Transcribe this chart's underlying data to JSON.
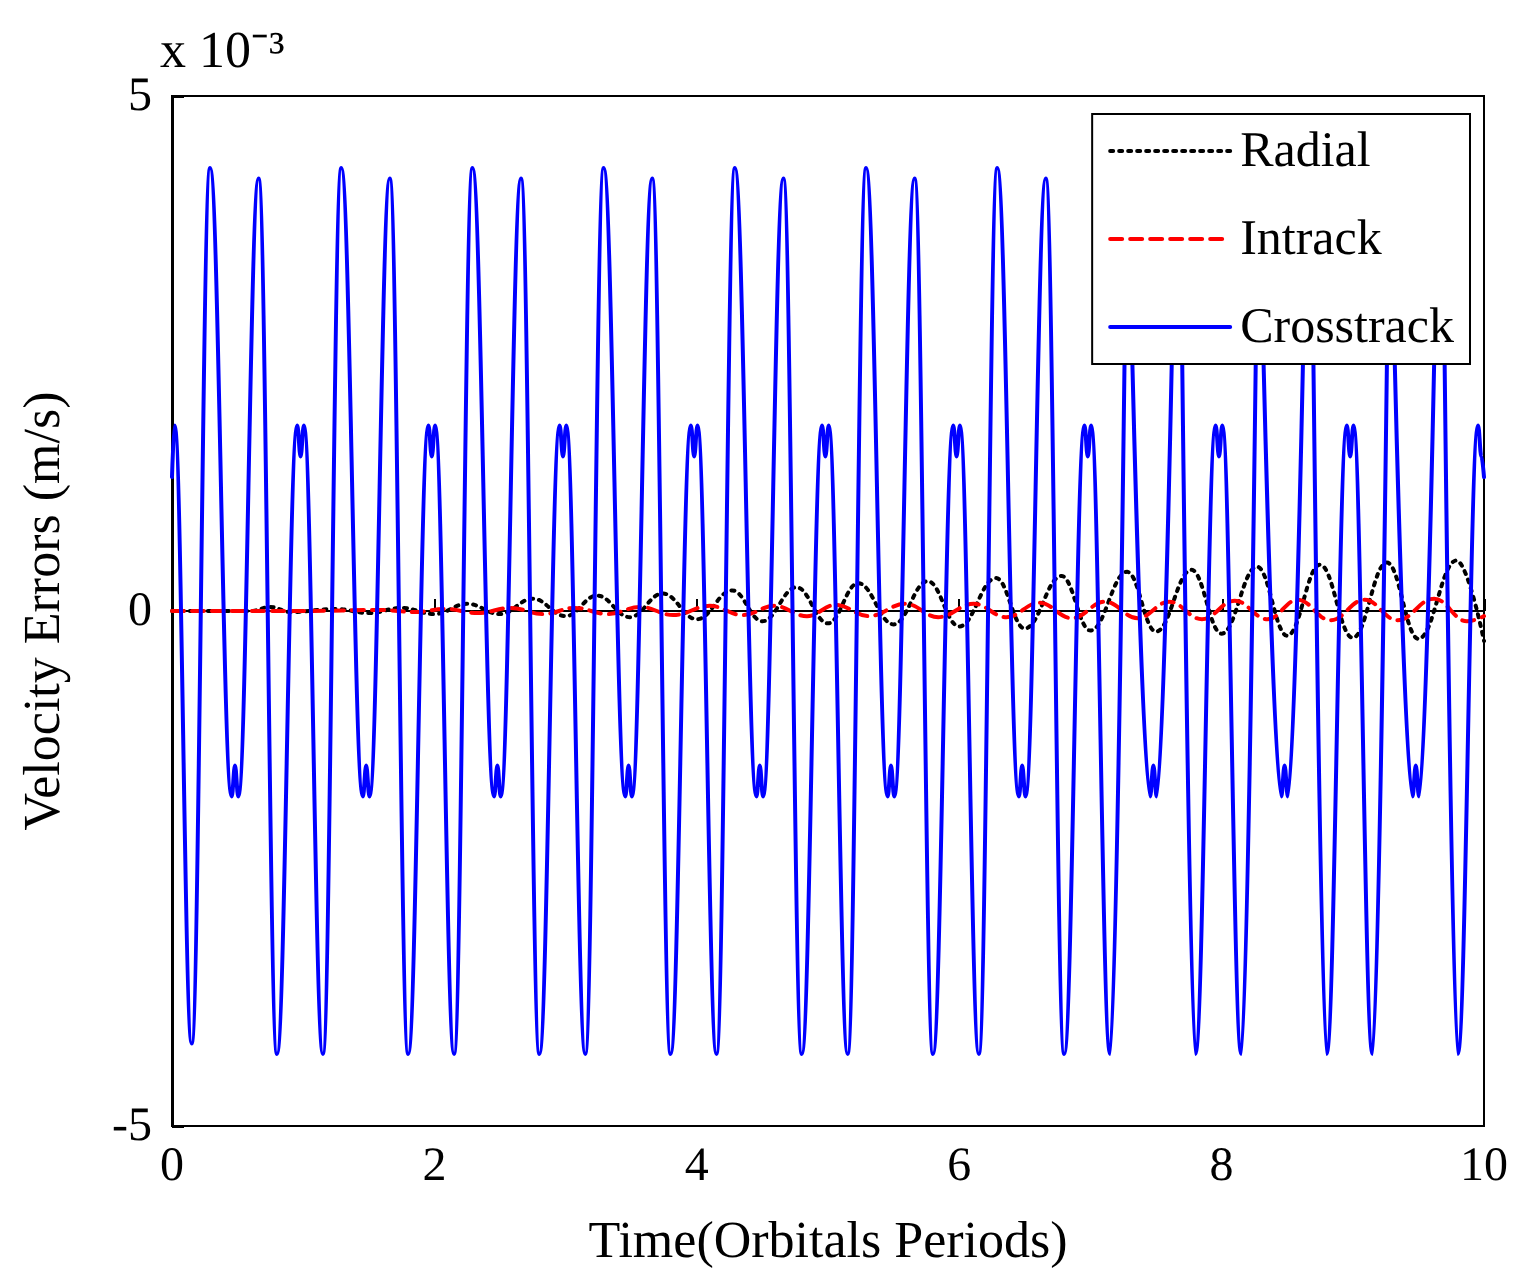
{
  "chart_data": {
    "type": "line",
    "xlabel": "Time(Orbitals Periods)",
    "ylabel": "Velocity Errors (m/s)",
    "annotations": [
      "x 10⁻³"
    ],
    "xlim": [
      0,
      10
    ],
    "xticks": [
      0,
      2,
      4,
      6,
      8,
      10
    ],
    "ylim": [
      -5,
      5
    ],
    "yticks": [
      -5,
      0,
      5
    ],
    "legend": "top right",
    "series": [
      {
        "name": "Radial",
        "color": "#000000",
        "line_style": "dotted",
        "x": [
          0,
          0.6,
          0.75,
          0.9,
          1.25,
          1.5,
          1.75,
          2.0,
          2.25,
          2.5,
          2.75,
          3.0,
          3.24,
          3.49,
          3.74,
          4.0,
          4.27,
          4.5,
          4.76,
          5.0,
          5.23,
          5.5,
          5.76,
          6.0,
          6.28,
          6.5,
          6.78,
          7.0,
          7.28,
          7.5,
          7.77,
          8.0,
          8.27,
          8.5,
          8.75,
          9.0,
          9.26,
          9.5,
          9.79,
          10.0
        ],
        "values": [
          0,
          0,
          0.04,
          -0.01,
          0.02,
          -0.02,
          0.03,
          -0.03,
          0.07,
          -0.03,
          0.12,
          -0.05,
          0.15,
          -0.06,
          0.17,
          -0.08,
          0.2,
          -0.1,
          0.23,
          -0.12,
          0.27,
          -0.13,
          0.29,
          -0.15,
          0.32,
          -0.17,
          0.34,
          -0.19,
          0.38,
          -0.2,
          0.4,
          -0.22,
          0.43,
          -0.24,
          0.45,
          -0.26,
          0.47,
          -0.27,
          0.49,
          -0.29
        ]
      },
      {
        "name": "Intrack",
        "color": "#ff0000",
        "line_style": "dashed",
        "x": [
          0,
          1,
          1.6,
          1.85,
          2.08,
          2.33,
          2.58,
          2.83,
          3.07,
          3.32,
          3.57,
          3.82,
          4.1,
          4.35,
          4.59,
          4.84,
          5.06,
          5.31,
          5.59,
          5.84,
          6.11,
          6.36,
          6.61,
          6.86,
          7.11,
          7.36,
          7.6,
          7.85,
          8.1,
          8.35,
          8.58,
          8.83,
          9.09,
          9.34,
          9.62,
          9.87,
          10
        ],
        "values": [
          0,
          0,
          0.01,
          -0.01,
          0.02,
          -0.02,
          0.03,
          -0.03,
          0.03,
          -0.03,
          0.04,
          -0.04,
          0.05,
          -0.04,
          0.05,
          -0.05,
          0.06,
          -0.05,
          0.07,
          -0.06,
          0.07,
          -0.06,
          0.08,
          -0.07,
          0.09,
          -0.07,
          0.09,
          -0.08,
          0.1,
          -0.08,
          0.11,
          -0.09,
          0.11,
          -0.09,
          0.12,
          -0.1,
          -0.05
        ]
      },
      {
        "name": "Crosstrack",
        "color": "#0000ff",
        "line_style": "solid",
        "x": [
          0,
          0.02,
          0.15,
          0.29,
          0.455,
          0.48,
          0.505,
          0.66,
          0.8,
          0.955,
          0.98,
          1.005,
          1.15,
          1.29,
          1.455,
          1.48,
          1.505,
          1.66,
          1.8,
          1.955,
          1.98,
          2.005,
          2.15,
          2.29,
          2.455,
          2.48,
          2.505,
          2.66,
          2.8,
          2.955,
          2.98,
          3.005,
          3.15,
          3.29,
          3.455,
          3.48,
          3.505,
          3.66,
          3.8,
          3.955,
          3.98,
          4.005,
          4.15,
          4.29,
          4.455,
          4.48,
          4.505,
          4.66,
          4.8,
          4.955,
          4.98,
          5.005,
          5.15,
          5.29,
          5.455,
          5.48,
          5.505,
          5.66,
          5.8,
          5.955,
          5.98,
          6.005,
          6.15,
          6.29,
          6.455,
          6.48,
          6.505,
          6.66,
          6.8,
          6.955,
          6.98,
          7.005,
          7.15,
          7.26,
          7.29,
          7.32,
          7.455,
          7.48,
          7.505,
          7.62,
          7.66,
          7.7,
          7.8,
          7.955,
          7.98,
          8.005,
          8.15,
          8.26,
          8.29,
          8.32,
          8.455,
          8.48,
          8.505,
          8.62,
          8.66,
          8.7,
          8.8,
          8.955,
          8.98,
          9.005,
          9.15,
          9.26,
          9.29,
          9.32,
          9.455,
          9.48,
          9.505,
          9.62,
          9.66,
          9.7,
          9.8,
          9.955,
          9.98,
          10
        ],
        "values": [
          1.3,
          1.8,
          -4.2,
          4.3,
          -1.8,
          -1.5,
          -1.8,
          4.2,
          -4.3,
          1.8,
          1.5,
          1.8,
          -4.3,
          4.3,
          -1.8,
          -1.5,
          -1.8,
          4.2,
          -4.3,
          1.8,
          1.5,
          1.8,
          -4.3,
          4.3,
          -1.8,
          -1.5,
          -1.8,
          4.2,
          -4.3,
          1.8,
          1.5,
          1.8,
          -4.3,
          4.3,
          -1.8,
          -1.5,
          -1.8,
          4.2,
          -4.3,
          1.8,
          1.5,
          1.8,
          -4.3,
          4.3,
          -1.8,
          -1.5,
          -1.8,
          4.2,
          -4.3,
          1.8,
          1.5,
          1.8,
          -4.3,
          4.3,
          -1.8,
          -1.5,
          -1.8,
          4.2,
          -4.3,
          1.8,
          1.5,
          1.8,
          -4.3,
          4.3,
          -1.8,
          -1.5,
          -1.8,
          4.2,
          -4.3,
          1.8,
          1.5,
          1.8,
          -4.3,
          2.4,
          null,
          2.4,
          -1.8,
          -1.5,
          -1.8,
          2.4,
          null,
          2.4,
          -4.3,
          1.8,
          1.5,
          1.8,
          -4.3,
          2.4,
          null,
          2.4,
          -1.8,
          -1.5,
          -1.8,
          2.4,
          null,
          2.4,
          -4.3,
          1.8,
          1.5,
          1.8,
          -4.3,
          2.4,
          null,
          2.4,
          -1.8,
          -1.5,
          -1.8,
          2.4,
          null,
          2.4,
          -4.3,
          1.8,
          1.5,
          1.3
        ]
      }
    ]
  }
}
